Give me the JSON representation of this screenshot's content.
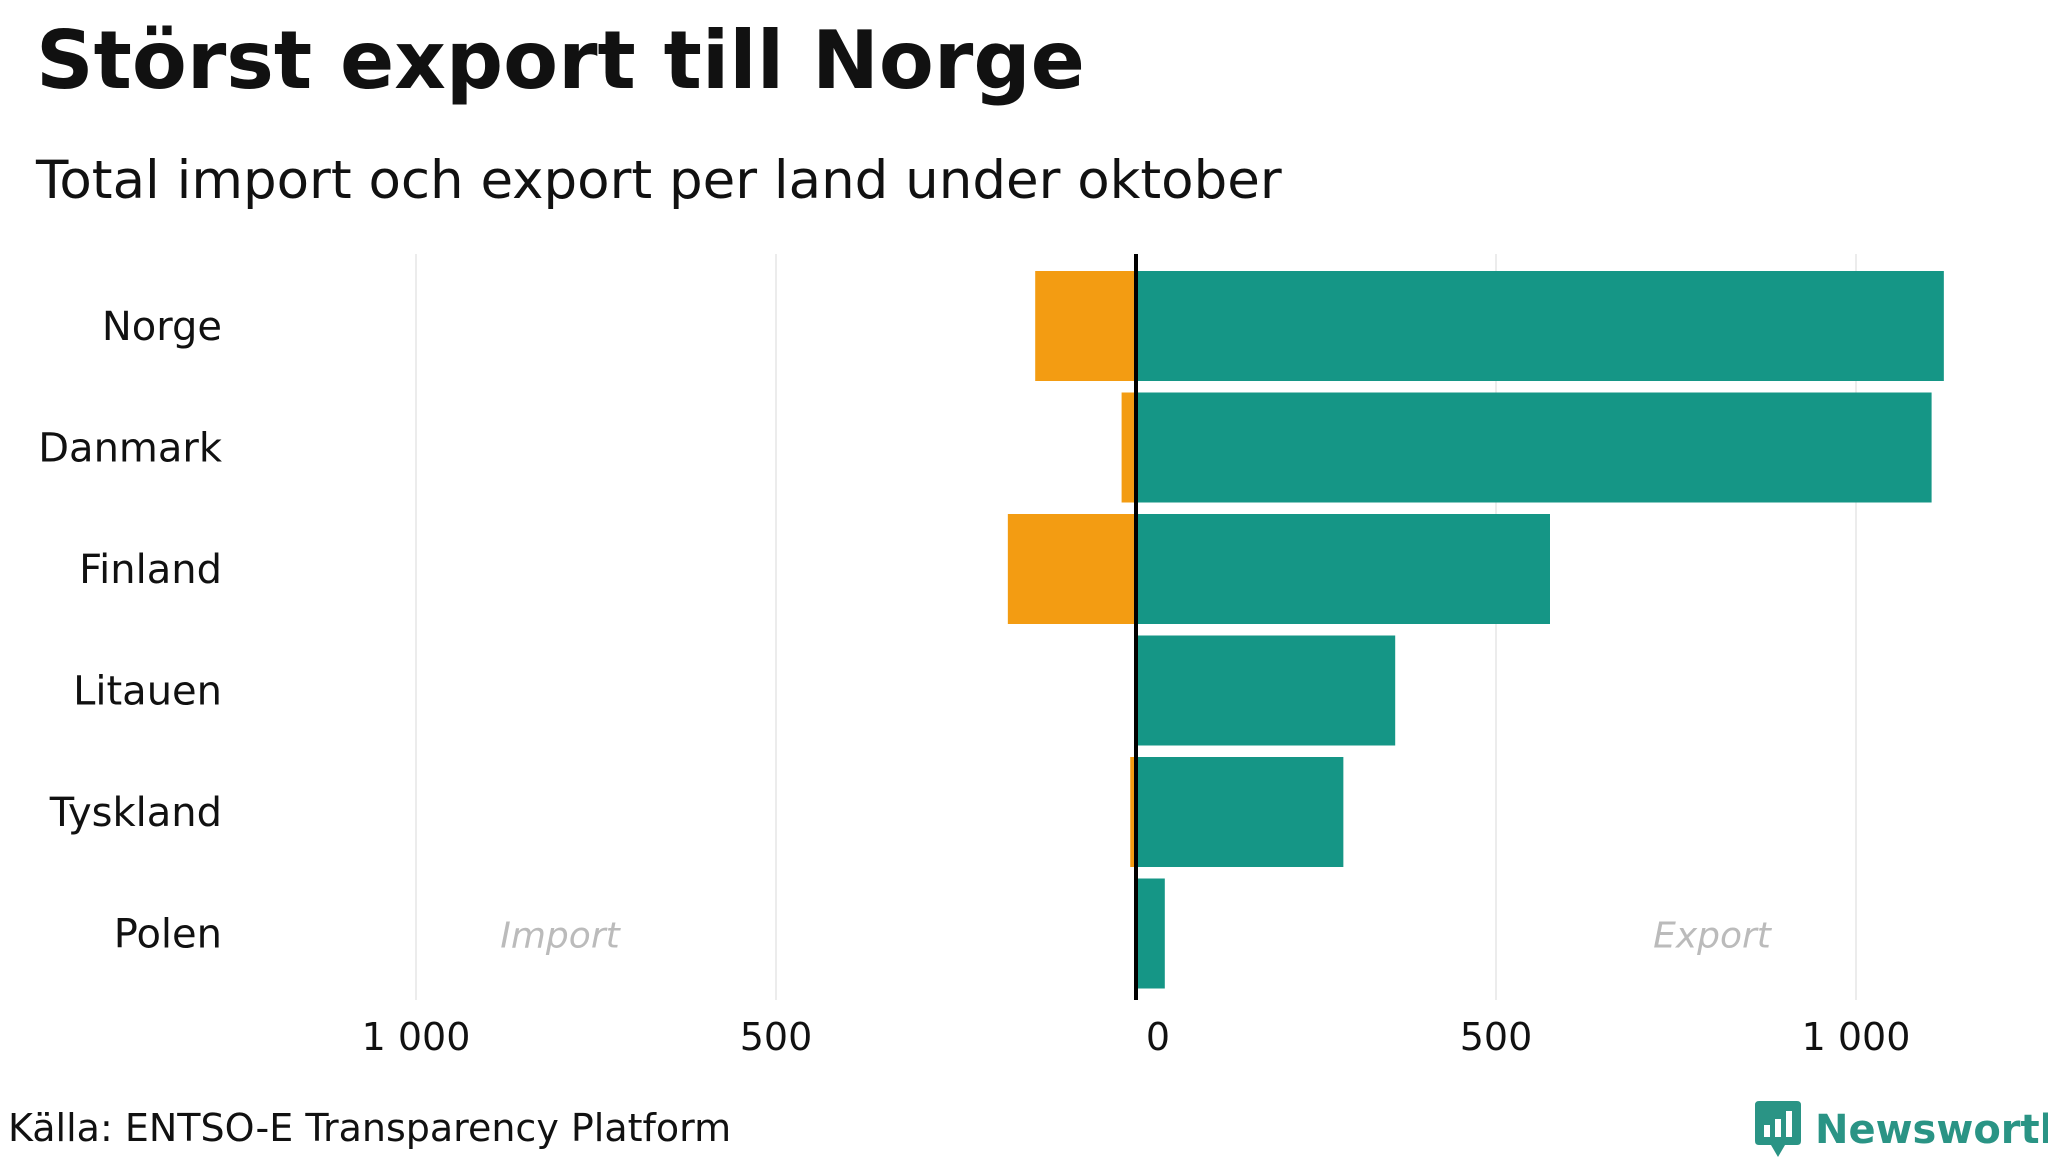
{
  "title": "Störst export till Norge",
  "subtitle": "Total import och export per land under oktober",
  "source": "Källa: ENTSO-E Transparency Platform",
  "brand": {
    "name": "Newsworthy",
    "logo_icon": "newsworthy-logo-icon",
    "color": "#2a9485"
  },
  "colors": {
    "import": "#f39c12",
    "export": "#159686",
    "grid": "#e6e6e6",
    "zero_line": "#000000",
    "annotation": "#bbbbbb"
  },
  "chart_data": {
    "type": "bar",
    "orientation": "horizontal",
    "categories": [
      "Norge",
      "Danmark",
      "Finland",
      "Litauen",
      "Tyskland",
      "Polen"
    ],
    "series": [
      {
        "name": "Import",
        "values": [
          140,
          20,
          178,
          0,
          8,
          2
        ]
      },
      {
        "name": "Export",
        "values": [
          1122,
          1105,
          575,
          360,
          288,
          40
        ]
      }
    ],
    "annotations": [
      {
        "text": "Import",
        "x": -800
      },
      {
        "text": "Export",
        "x": 800
      }
    ],
    "xlim": [
      -1000,
      1100
    ],
    "xticks": [
      {
        "value": -1000,
        "label": "1 000"
      },
      {
        "value": -500,
        "label": "500"
      },
      {
        "value": 0,
        "label": "0"
      },
      {
        "value": 500,
        "label": "500"
      },
      {
        "value": 1000,
        "label": "1 000"
      }
    ],
    "grid": true,
    "legend": "none"
  }
}
